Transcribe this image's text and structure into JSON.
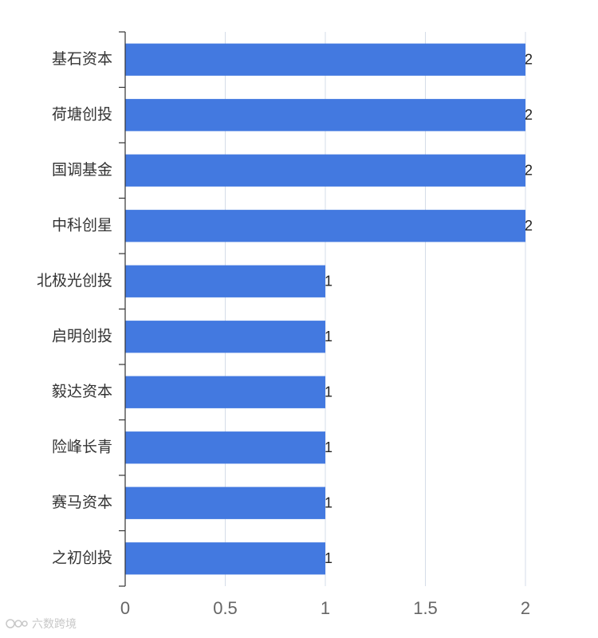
{
  "chart_data": {
    "type": "bar",
    "orientation": "horizontal",
    "categories": [
      "基石资本",
      "荷塘创投",
      "国调基金",
      "中科创星",
      "北极光创投",
      "启明创投",
      "毅达资本",
      "险峰长青",
      "赛马资本",
      "之初创投"
    ],
    "values": [
      2,
      2,
      2,
      2,
      1,
      1,
      1,
      1,
      1,
      1
    ],
    "xlim": [
      0,
      2
    ],
    "xticks": [
      0,
      0.5,
      1,
      1.5,
      2
    ],
    "xtick_labels": [
      "0",
      "0.5",
      "1",
      "1.5",
      "2"
    ],
    "title": "",
    "xlabel": "",
    "ylabel": "",
    "grid": "vertical",
    "bar_color": "#4379e0",
    "grid_color": "#d5dce8",
    "axis_color": "#333333"
  },
  "watermark": {
    "text": "六数跨境"
  }
}
